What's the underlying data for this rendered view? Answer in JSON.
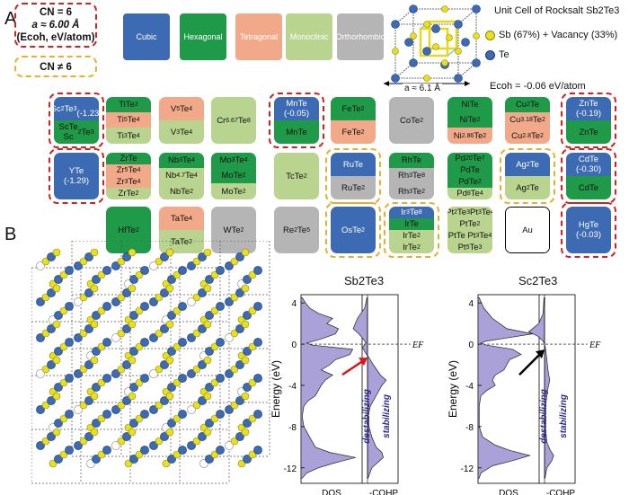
{
  "panel_a": {
    "letter": "A",
    "legend_cn6_line1": "CN = 6",
    "legend_cn6_line2": "a ≈ 6.00 Å",
    "legend_cn6_line3": "(Ecoh, eV/atom)",
    "legend_cn_not6": "CN ≠ 6",
    "swatches": [
      {
        "label": "Cubic",
        "color": "#3d6bb3"
      },
      {
        "label": "Hexagonal",
        "color": "#1f9a48"
      },
      {
        "label": "Tetragonal",
        "color": "#f2a98a"
      },
      {
        "label": "Monoclinic",
        "color": "#b9d48f"
      },
      {
        "label": "Orthorhombic",
        "color": "#b5b5b5"
      }
    ],
    "unit_cell_title": "Unit Cell of Rocksalt Sb2Te3",
    "legend_sb": "Sb (67%) + Vacancy (33%)",
    "legend_te": "Te",
    "lattice_param": "a ≈ 6.1 Å",
    "ecoh": "Ecoh = -0.06 eV/atom",
    "cells": [
      {
        "segments": [
          {
            "text": "Sc2Te3\n(-1.23)",
            "color": "#3d6bb3",
            "h": 50
          },
          {
            "text": "ScTe\nSc2Te3",
            "color": "#1f9a48",
            "h": 50
          }
        ]
      },
      {
        "segments": [
          {
            "text": "TiTe2",
            "color": "#1f9a48",
            "h": 33
          },
          {
            "text": "Ti5Te4",
            "color": "#f2a98a",
            "h": 33
          },
          {
            "text": "Ti3Te4",
            "color": "#b9d48f",
            "h": 34
          }
        ]
      },
      {
        "segments": [
          {
            "text": "V5Te4",
            "color": "#f2a98a",
            "h": 50
          },
          {
            "text": "V3Te4",
            "color": "#b9d48f",
            "h": 50
          }
        ]
      },
      {
        "segments": [
          {
            "text": "Cr6.67Te8",
            "color": "#b9d48f",
            "h": 100
          }
        ]
      },
      {
        "segments": [
          {
            "text": "MnTe\n(-0.05)",
            "color": "#3d6bb3",
            "h": 50
          },
          {
            "text": "MnTe",
            "color": "#1f9a48",
            "h": 50
          }
        ]
      },
      {
        "segments": [
          {
            "text": "FeTe2",
            "color": "#1f9a48",
            "h": 50
          },
          {
            "text": "FeTe2",
            "color": "#f2a98a",
            "h": 50
          }
        ]
      },
      {
        "segments": [
          {
            "text": "CoTe2",
            "color": "#b5b5b5",
            "h": 100
          }
        ]
      },
      {
        "segments": [
          {
            "text": "NiTe",
            "color": "#1f9a48",
            "h": 33
          },
          {
            "text": "NiTe2",
            "color": "#1f9a48",
            "h": 33
          },
          {
            "text": "Ni2.86Te2",
            "color": "#f2a98a",
            "h": 34
          }
        ]
      },
      {
        "segments": [
          {
            "text": "Cu2Te",
            "color": "#1f9a48",
            "h": 33
          },
          {
            "text": "Cu3.18Te2",
            "color": "#f2a98a",
            "h": 33
          },
          {
            "text": "Cu2.8Te2",
            "color": "#f2a98a",
            "h": 34
          }
        ]
      },
      {
        "segments": [
          {
            "text": "ZnTe\n(-0.19)",
            "color": "#3d6bb3",
            "h": 50
          },
          {
            "text": "ZnTe",
            "color": "#1f9a48",
            "h": 50
          }
        ]
      },
      {
        "segments": [
          {
            "text": "YTe\n(-1.29)",
            "color": "#3d6bb3",
            "h": 100
          }
        ]
      },
      {
        "segments": [
          {
            "text": "ZrTe",
            "color": "#1f9a48",
            "h": 25
          },
          {
            "text": "Zr5Te4",
            "color": "#f2a98a",
            "h": 25
          },
          {
            "text": "Zr3Te4",
            "color": "#f2a98a",
            "h": 25
          },
          {
            "text": "ZrTe2",
            "color": "#b9d48f",
            "h": 25
          }
        ]
      },
      {
        "segments": [
          {
            "text": "Nb3Te4",
            "color": "#1f9a48",
            "h": 33
          },
          {
            "text": "Nb4.7Te4",
            "color": "#b9d48f",
            "h": 33
          },
          {
            "text": "NbTe2",
            "color": "#b9d48f",
            "h": 34
          }
        ]
      },
      {
        "segments": [
          {
            "text": "Mo3Te4",
            "color": "#1f9a48",
            "h": 33
          },
          {
            "text": "MoTe2",
            "color": "#1f9a48",
            "h": 33
          },
          {
            "text": "MoTe2",
            "color": "#b9d48f",
            "h": 34
          }
        ]
      },
      {
        "segments": [
          {
            "text": "TcTe2",
            "color": "#b9d48f",
            "h": 100
          }
        ]
      },
      {
        "segments": [
          {
            "text": "RuTe",
            "color": "#3d6bb3",
            "h": 50
          },
          {
            "text": "RuTe2",
            "color": "#b5b5b5",
            "h": 50
          }
        ]
      },
      {
        "segments": [
          {
            "text": "RhTe",
            "color": "#1f9a48",
            "h": 33
          },
          {
            "text": "Rh3Te8",
            "color": "#b5b5b5",
            "h": 33
          },
          {
            "text": "Rh3Te2",
            "color": "#b5b5b5",
            "h": 34
          }
        ]
      },
      {
        "segments": [
          {
            "text": "Pd20Te7",
            "color": "#1f9a48",
            "h": 25
          },
          {
            "text": "PdTe",
            "color": "#1f9a48",
            "h": 25
          },
          {
            "text": "PdTe2",
            "color": "#1f9a48",
            "h": 25
          },
          {
            "text": "Pd8Te4",
            "color": "#b9d48f",
            "h": 25
          }
        ]
      },
      {
        "segments": [
          {
            "text": "Ag2Te",
            "color": "#3d6bb3",
            "h": 50
          },
          {
            "text": "Ag2Te",
            "color": "#b9d48f",
            "h": 50
          }
        ]
      },
      {
        "segments": [
          {
            "text": "CdTe\n(-0.30)",
            "color": "#3d6bb3",
            "h": 50
          },
          {
            "text": "CdTe",
            "color": "#1f9a48",
            "h": 50
          }
        ]
      },
      {
        "segments": [
          {
            "text": "HfTe2",
            "color": "#1f9a48",
            "h": 100
          }
        ]
      },
      {
        "segments": [
          {
            "text": "TaTe4",
            "color": "#f2a98a",
            "h": 50
          },
          {
            "text": "TaTe2",
            "color": "#b9d48f",
            "h": 50
          }
        ]
      },
      {
        "segments": [
          {
            "text": "WTe2",
            "color": "#b5b5b5",
            "h": 100
          }
        ]
      },
      {
        "segments": [
          {
            "text": "Re2Te5",
            "color": "#b5b5b5",
            "h": 100
          }
        ]
      },
      {
        "segments": [
          {
            "text": "OsTe2",
            "color": "#3d6bb3",
            "h": 100
          }
        ]
      },
      {
        "segments": [
          {
            "text": "Ir3Te8",
            "color": "#3d6bb3",
            "h": 25
          },
          {
            "text": "IrTe",
            "color": "#1f9a48",
            "h": 25
          },
          {
            "text": "IrTe2",
            "color": "#b9d48f",
            "h": 25
          },
          {
            "text": "IrTe2",
            "color": "#b9d48f",
            "h": 25
          }
        ]
      },
      {
        "segments": [
          {
            "text": "Pt2Te3  Pt3Te4",
            "color": "#b9d48f",
            "h": 25
          },
          {
            "text": "PtTe2",
            "color": "#b9d48f",
            "h": 25
          },
          {
            "text": "PtTe  Pt3Te4",
            "color": "#b9d48f",
            "h": 25
          },
          {
            "text": "Pt5Te3",
            "color": "#b9d48f",
            "h": 25
          }
        ]
      },
      {
        "segments": [
          {
            "text": "Au",
            "color": "#ffffff",
            "h": 100
          }
        ]
      },
      {
        "segments": [
          {
            "text": "HgTe\n(-0.03)",
            "color": "#3d6bb3",
            "h": 100
          }
        ]
      }
    ]
  },
  "panel_b": {
    "letter": "B",
    "chart_data": [
      {
        "type": "area",
        "title": "Sb2Te3",
        "ylabel": "Energy (eV)",
        "ylim": [
          -13.5,
          4.8
        ],
        "yticks": [
          4,
          0,
          -4,
          -8,
          -12
        ],
        "fermi_label": "EF",
        "dos_label": "DOS",
        "cohp_label": "-COHP",
        "destabilizing_label": "destabilizing",
        "stabilizing_label": "stabilizing",
        "dos": [
          [
            4.5,
            0.02
          ],
          [
            4.0,
            0.08
          ],
          [
            3.5,
            0.15
          ],
          [
            3.0,
            0.3
          ],
          [
            2.5,
            0.55
          ],
          [
            2.0,
            0.45
          ],
          [
            1.5,
            0.65
          ],
          [
            1.0,
            0.6
          ],
          [
            0.5,
            0.35
          ],
          [
            0.1,
            0.1
          ],
          [
            -0.1,
            0.2
          ],
          [
            -0.5,
            0.9
          ],
          [
            -1.0,
            0.85
          ],
          [
            -1.5,
            0.6
          ],
          [
            -2.0,
            0.5
          ],
          [
            -2.5,
            0.35
          ],
          [
            -3.0,
            0.55
          ],
          [
            -3.5,
            0.42
          ],
          [
            -4.0,
            0.35
          ],
          [
            -4.5,
            0.3
          ],
          [
            -5.0,
            0.25
          ],
          [
            -5.5,
            0.12
          ],
          [
            -6.0,
            0.05
          ],
          [
            -7.0,
            0.02
          ],
          [
            -8.0,
            0.05
          ],
          [
            -9.0,
            0.15
          ],
          [
            -10.0,
            0.25
          ],
          [
            -10.5,
            0.5
          ],
          [
            -11.0,
            0.95
          ],
          [
            -11.5,
            0.6
          ],
          [
            -12.0,
            0.3
          ],
          [
            -12.5,
            0.1
          ],
          [
            -13.0,
            0.02
          ]
        ],
        "cohp": [
          [
            4.5,
            -0.02
          ],
          [
            3.5,
            -0.1
          ],
          [
            2.5,
            -0.35
          ],
          [
            1.5,
            -0.5
          ],
          [
            1.0,
            -0.3
          ],
          [
            0.5,
            -0.15
          ],
          [
            0.1,
            -0.05
          ],
          [
            -0.3,
            -0.18
          ],
          [
            -0.8,
            -0.08
          ],
          [
            -1.3,
            0.05
          ],
          [
            -2.0,
            0.2
          ],
          [
            -3.0,
            0.45
          ],
          [
            -3.5,
            0.65
          ],
          [
            -4.0,
            0.5
          ],
          [
            -5.0,
            0.3
          ],
          [
            -6.0,
            0.1
          ],
          [
            -7.0,
            0.02
          ],
          [
            -8.0,
            0.05
          ],
          [
            -9.0,
            0.15
          ],
          [
            -10.0,
            0.3
          ],
          [
            -10.5,
            0.5
          ],
          [
            -11.0,
            0.55
          ],
          [
            -11.5,
            0.35
          ],
          [
            -12.0,
            0.15
          ],
          [
            -13.0,
            0.02
          ]
        ]
      },
      {
        "type": "area",
        "title": "Sc2Te3",
        "ylabel": "Energy (eV)",
        "ylim": [
          -13.5,
          4.8
        ],
        "yticks": [
          4,
          0,
          -4,
          -8,
          -12
        ],
        "fermi_label": "EF",
        "dos_label": "DOS",
        "cohp_label": "-COHP",
        "destabilizing_label": "destabilizing",
        "stabilizing_label": "stabilizing",
        "dos": [
          [
            4.5,
            0.02
          ],
          [
            3.5,
            0.1
          ],
          [
            2.5,
            0.25
          ],
          [
            1.5,
            0.5
          ],
          [
            1.0,
            0.95
          ],
          [
            0.6,
            0.5
          ],
          [
            0.3,
            0.15
          ],
          [
            0.1,
            0.05
          ],
          [
            -0.1,
            0.15
          ],
          [
            -0.5,
            0.6
          ],
          [
            -1.0,
            0.75
          ],
          [
            -1.5,
            0.55
          ],
          [
            -2.0,
            0.5
          ],
          [
            -2.5,
            0.45
          ],
          [
            -3.0,
            0.3
          ],
          [
            -3.5,
            0.25
          ],
          [
            -4.0,
            0.3
          ],
          [
            -4.5,
            0.15
          ],
          [
            -5.0,
            0.05
          ],
          [
            -6.0,
            0.02
          ],
          [
            -8.0,
            0.02
          ],
          [
            -9.0,
            0.08
          ],
          [
            -9.8,
            0.3
          ],
          [
            -10.3,
            0.55
          ],
          [
            -10.8,
            0.9
          ],
          [
            -11.3,
            0.6
          ],
          [
            -11.8,
            0.25
          ],
          [
            -12.5,
            0.05
          ],
          [
            -13.0,
            0.02
          ]
        ],
        "cohp": [
          [
            4.5,
            -0.02
          ],
          [
            3.0,
            -0.05
          ],
          [
            2.0,
            -0.2
          ],
          [
            1.2,
            -0.55
          ],
          [
            0.8,
            -0.25
          ],
          [
            0.3,
            -0.05
          ],
          [
            0.0,
            0.0
          ],
          [
            -0.5,
            0.04
          ],
          [
            -1.5,
            0.08
          ],
          [
            -2.5,
            0.12
          ],
          [
            -3.5,
            0.18
          ],
          [
            -4.5,
            0.1
          ],
          [
            -6.0,
            0.04
          ],
          [
            -8.0,
            0.03
          ],
          [
            -9.5,
            0.08
          ],
          [
            -10.3,
            0.2
          ],
          [
            -10.8,
            0.32
          ],
          [
            -11.3,
            0.25
          ],
          [
            -12.0,
            0.08
          ],
          [
            -13.0,
            0.02
          ]
        ]
      }
    ]
  }
}
